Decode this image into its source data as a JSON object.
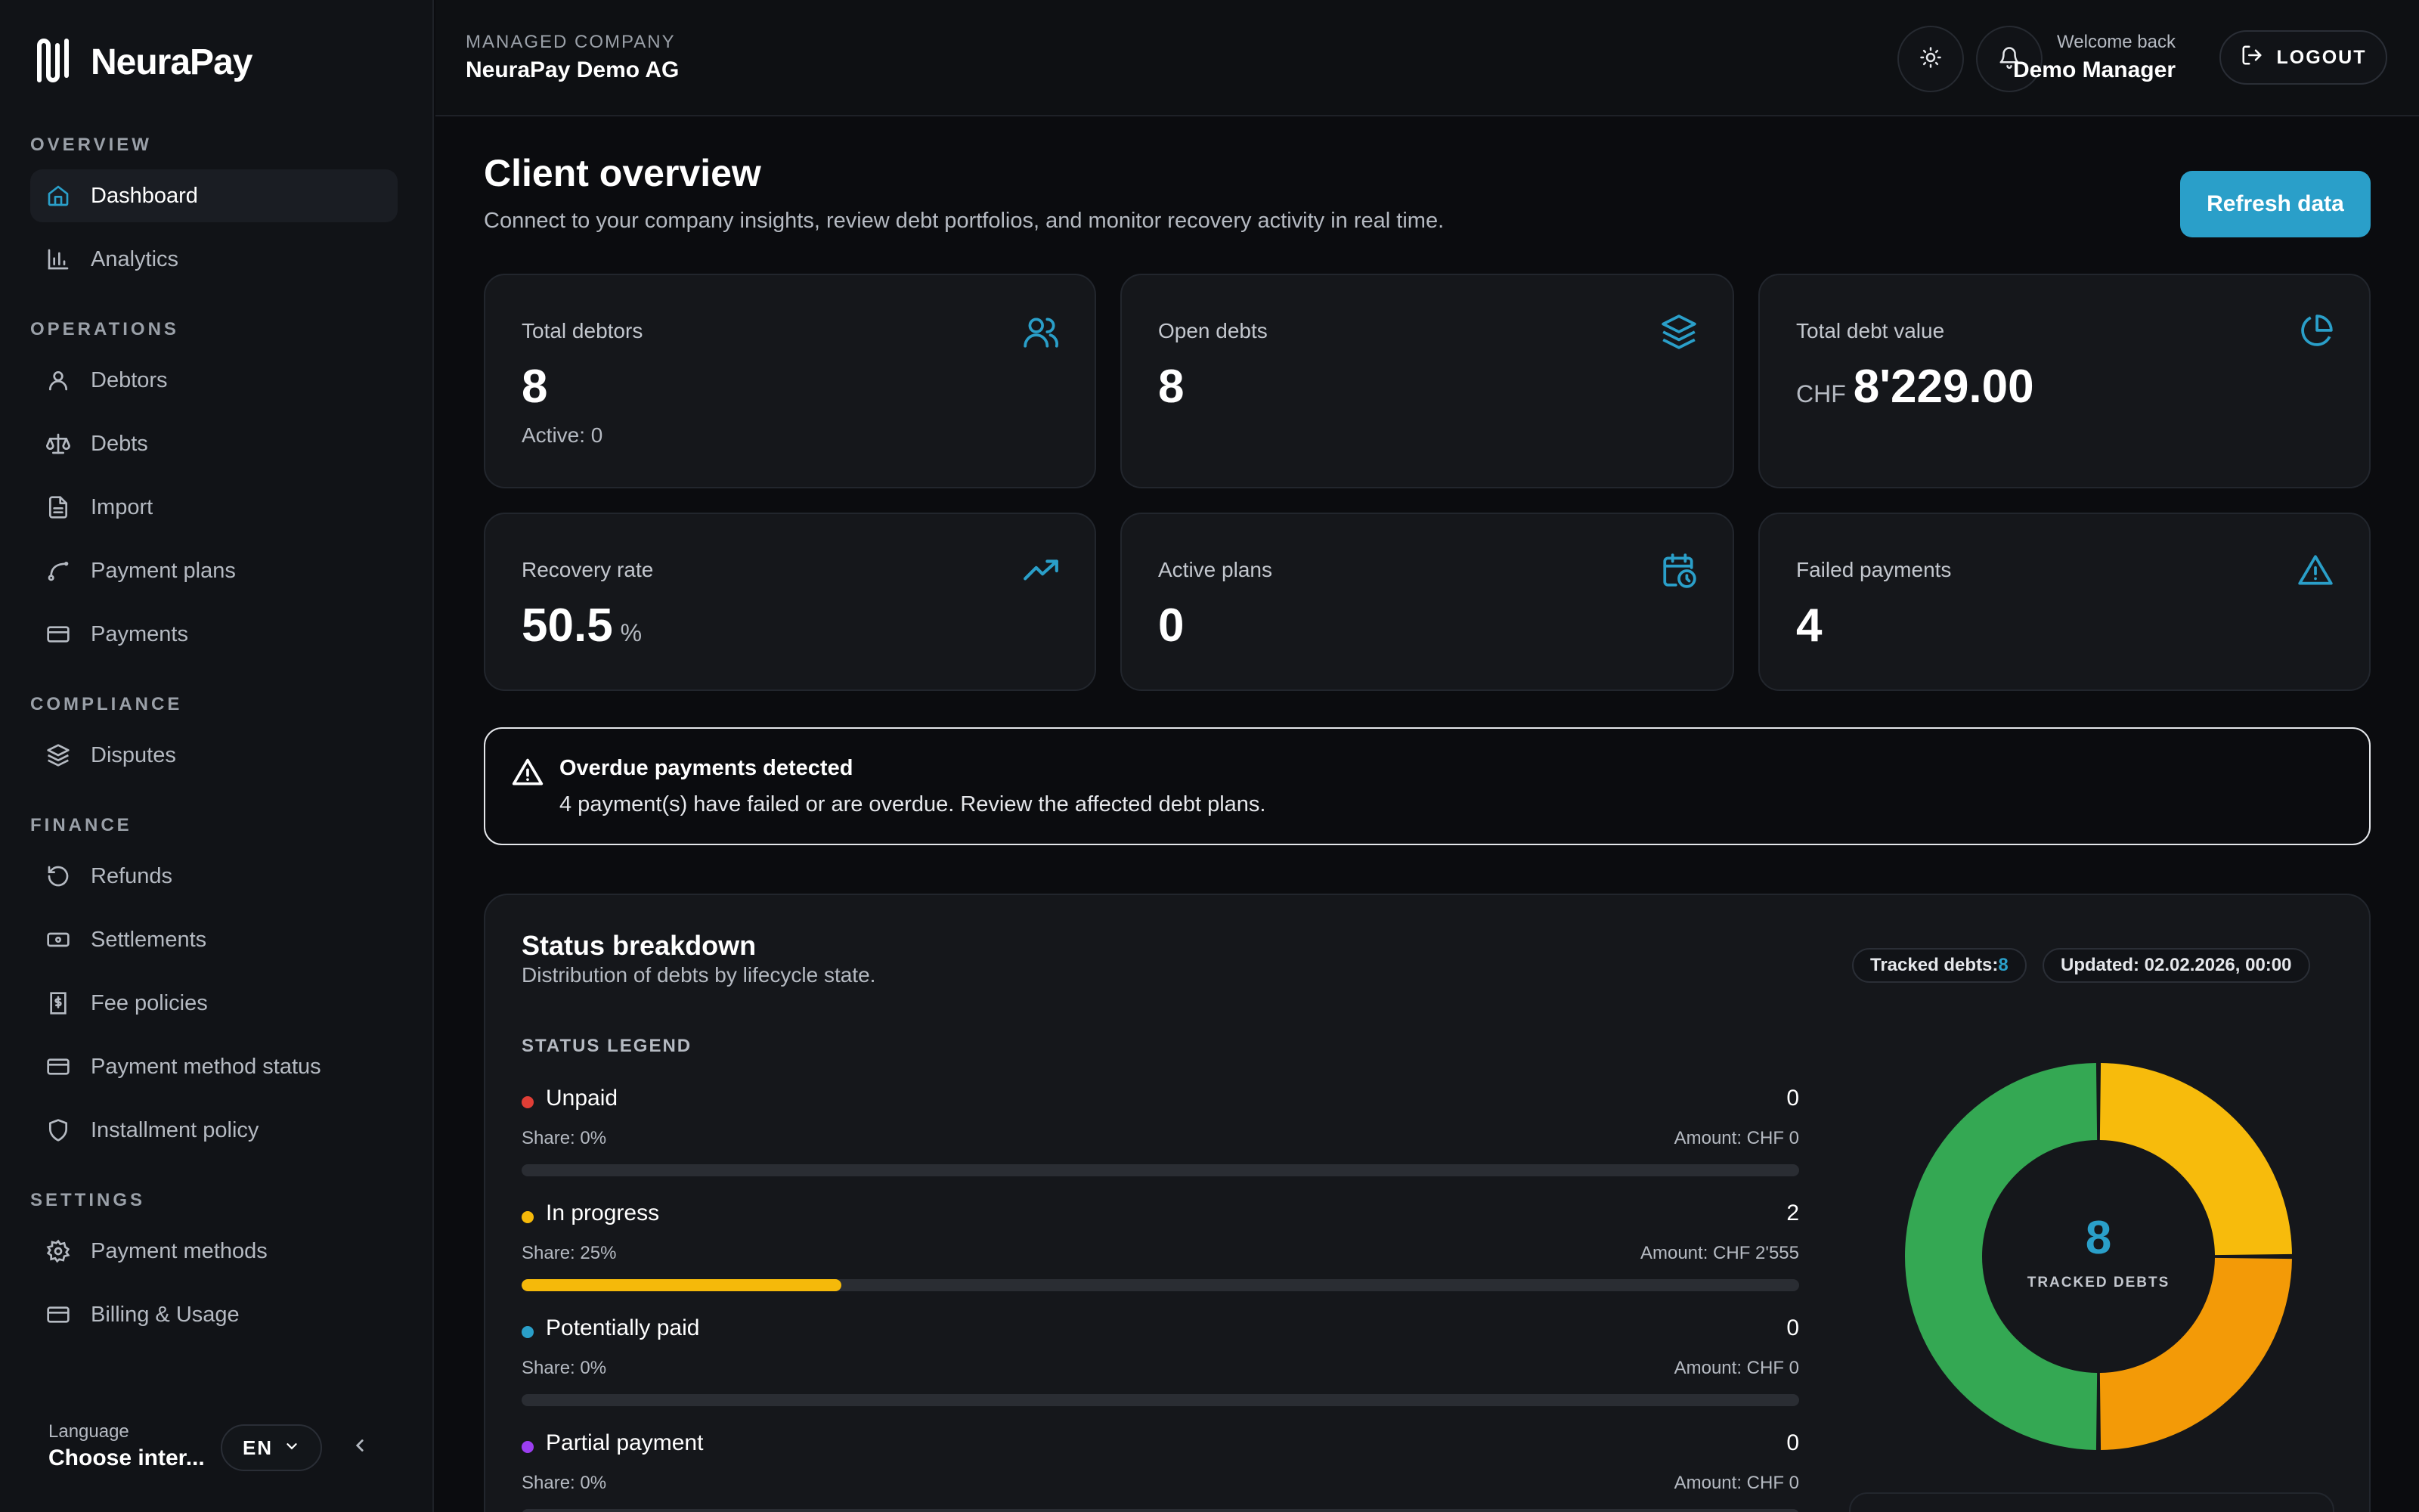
{
  "brand": {
    "name": "NeuraPay",
    "accent": "#2a9fc9"
  },
  "sidebar": {
    "sections": [
      {
        "label": "OVERVIEW",
        "items": [
          {
            "label": "Dashboard",
            "icon": "home-icon",
            "active": true
          },
          {
            "label": "Analytics",
            "icon": "bar-chart-icon"
          }
        ]
      },
      {
        "label": "OPERATIONS",
        "items": [
          {
            "label": "Debtors",
            "icon": "user-icon"
          },
          {
            "label": "Debts",
            "icon": "scale-icon"
          },
          {
            "label": "Import",
            "icon": "file-icon"
          },
          {
            "label": "Payment plans",
            "icon": "route-icon"
          },
          {
            "label": "Payments",
            "icon": "card-icon"
          }
        ]
      },
      {
        "label": "COMPLIANCE",
        "items": [
          {
            "label": "Disputes",
            "icon": "layers-icon"
          }
        ]
      },
      {
        "label": "FINANCE",
        "items": [
          {
            "label": "Refunds",
            "icon": "undo-icon"
          },
          {
            "label": "Settlements",
            "icon": "banknote-icon"
          },
          {
            "label": "Fee policies",
            "icon": "receipt-icon"
          },
          {
            "label": "Payment method status",
            "icon": "card-icon"
          },
          {
            "label": "Installment policy",
            "icon": "shield-icon"
          }
        ]
      },
      {
        "label": "SETTINGS",
        "items": [
          {
            "label": "Payment methods",
            "icon": "gear-icon"
          },
          {
            "label": "Billing & Usage",
            "icon": "card-icon"
          }
        ]
      }
    ],
    "language": {
      "label": "Language",
      "value": "Choose inter...",
      "code": "EN"
    }
  },
  "topbar": {
    "company_label": "MANAGED COMPANY",
    "company_name": "NeuraPay Demo AG",
    "welcome_label": "Welcome back",
    "user_name": "Demo Manager",
    "logout_label": "LOGOUT"
  },
  "main": {
    "title": "Client overview",
    "subtitle": "Connect to your company insights, review debt portfolios, and monitor recovery activity in real time.",
    "refresh_label": "Refresh data",
    "kpis": [
      {
        "label": "Total debtors",
        "value": "8",
        "sub": "Active: 0",
        "icon": "users-icon"
      },
      {
        "label": "Open debts",
        "value": "8",
        "icon": "layers-icon"
      },
      {
        "label": "Total debt value",
        "prefix": "CHF",
        "value": "8'229.00",
        "icon": "pie-chart-icon"
      },
      {
        "label": "Recovery rate",
        "value": "50.5",
        "suffix": "%",
        "icon": "trending-up-icon"
      },
      {
        "label": "Active plans",
        "value": "0",
        "icon": "calendar-clock-icon"
      },
      {
        "label": "Failed payments",
        "value": "4",
        "icon": "warning-icon"
      }
    ],
    "alert": {
      "title": "Overdue payments detected",
      "text": "4 payment(s) have failed or are overdue. Review the affected debt plans."
    },
    "status": {
      "title": "Status breakdown",
      "subtitle": "Distribution of debts by lifecycle state.",
      "tracked_label": "Tracked debts:",
      "tracked_value": "8",
      "updated": "Updated: 02.02.2026, 00:00",
      "legend_title": "STATUS LEGEND",
      "items": [
        {
          "name": "Unpaid",
          "count": "0",
          "share": "Share: 0%",
          "amount": "Amount: CHF 0",
          "color": "#e03e36",
          "fraction": 0
        },
        {
          "name": "In progress",
          "count": "2",
          "share": "Share: 25%",
          "amount": "Amount: CHF 2'555",
          "color": "#f5b90a",
          "fraction": 0.25
        },
        {
          "name": "Potentially paid",
          "count": "0",
          "share": "Share: 0%",
          "amount": "Amount: CHF 0",
          "color": "#2a9fc9",
          "fraction": 0
        },
        {
          "name": "Partial payment",
          "count": "0",
          "share": "Share: 0%",
          "amount": "Amount: CHF 0",
          "color": "#9b3ef0",
          "fraction": 0
        }
      ],
      "donut": {
        "center_value": "8",
        "center_label": "TRACKED DEBTS",
        "segments": [
          {
            "value": 2,
            "color": "#f7bb0c"
          },
          {
            "value": 2,
            "color": "#f39a07"
          },
          {
            "value": 4,
            "color": "#34a853"
          }
        ]
      }
    }
  }
}
